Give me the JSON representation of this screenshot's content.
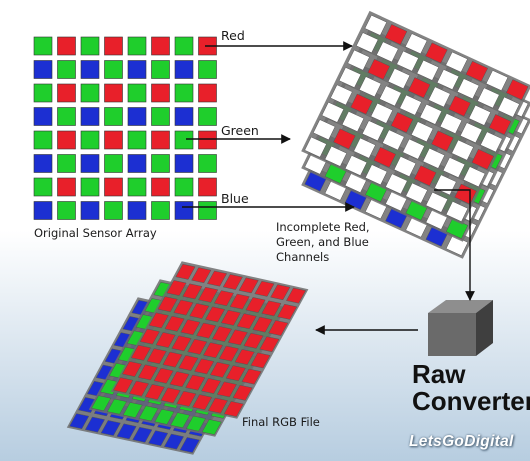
{
  "labels": {
    "red": "Red",
    "green": "Green",
    "blue": "Blue",
    "original_sensor_array": "Original Sensor Array",
    "incomplete_channels": "Incomplete Red,\nGreen, and Blue\nChannels",
    "raw_converter": "Raw\nConverter",
    "final_rgb_file": "Final RGB File",
    "watermark": "LetsGoDigital"
  },
  "colors": {
    "red": "#e8202a",
    "green": "#1fce2c",
    "blue": "#1c2fd2",
    "empty_cell": "#ffffff",
    "background_top": "#ffffff",
    "background_bottom": "#b7cde0",
    "arrow": "#111111"
  },
  "sensor_array": {
    "rows": 8,
    "cols": 8,
    "pattern": "bayer"
  }
}
